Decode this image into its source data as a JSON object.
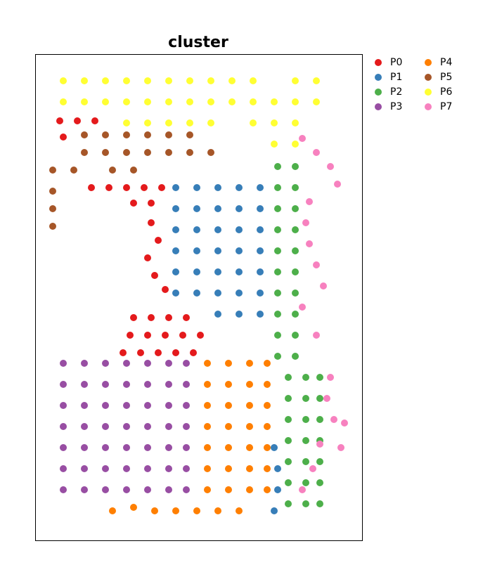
{
  "chart_data": {
    "type": "scatter",
    "title": "cluster",
    "xlim": [
      0,
      465
    ],
    "ylim": [
      693,
      0
    ],
    "legend": "outside-right",
    "series": [
      {
        "name": "P0",
        "color": "#e41a1c",
        "x": [
          35,
          60,
          85,
          40,
          80,
          105,
          130,
          155,
          180,
          140,
          165,
          165,
          175,
          160,
          170,
          185,
          140,
          165,
          190,
          215,
          135,
          160,
          185,
          210,
          235,
          125,
          150,
          175,
          200,
          225
        ],
        "y": [
          95,
          95,
          95,
          118,
          190,
          190,
          190,
          190,
          190,
          212,
          212,
          240,
          265,
          290,
          315,
          335,
          375,
          375,
          375,
          375,
          400,
          400,
          400,
          400,
          400,
          425,
          425,
          425,
          425,
          425
        ]
      },
      {
        "name": "P1",
        "color": "#377eb8",
        "x": [
          200,
          230,
          260,
          290,
          320,
          200,
          230,
          260,
          290,
          320,
          200,
          230,
          260,
          290,
          320,
          200,
          230,
          260,
          290,
          320,
          200,
          230,
          260,
          290,
          320,
          200,
          230,
          260,
          290,
          320,
          260,
          290,
          320,
          340,
          345,
          345,
          340
        ],
        "y": [
          190,
          190,
          190,
          190,
          190,
          220,
          220,
          220,
          220,
          220,
          250,
          250,
          250,
          250,
          250,
          280,
          280,
          280,
          280,
          280,
          310,
          310,
          310,
          310,
          310,
          340,
          340,
          340,
          340,
          340,
          370,
          370,
          370,
          560,
          590,
          620,
          650
        ]
      },
      {
        "name": "P2",
        "color": "#4daf4a",
        "x": [
          345,
          370,
          345,
          370,
          345,
          370,
          345,
          370,
          345,
          370,
          345,
          370,
          345,
          370,
          345,
          370,
          345,
          370,
          345,
          370,
          360,
          385,
          405,
          360,
          385,
          405,
          360,
          385,
          405,
          360,
          385,
          405,
          360,
          385,
          405,
          360,
          385,
          405,
          360,
          385,
          405
        ],
        "y": [
          160,
          160,
          190,
          190,
          220,
          220,
          250,
          250,
          280,
          280,
          310,
          310,
          340,
          340,
          370,
          370,
          400,
          400,
          430,
          430,
          460,
          460,
          460,
          490,
          490,
          490,
          520,
          520,
          520,
          550,
          550,
          550,
          580,
          580,
          580,
          610,
          610,
          610,
          640,
          640,
          640
        ]
      },
      {
        "name": "P3",
        "color": "#984ea3",
        "x": [
          40,
          70,
          100,
          130,
          160,
          190,
          215,
          40,
          70,
          100,
          130,
          160,
          190,
          215,
          40,
          70,
          100,
          130,
          160,
          190,
          215,
          40,
          70,
          100,
          130,
          160,
          190,
          215,
          40,
          70,
          100,
          130,
          160,
          190,
          215,
          40,
          70,
          100,
          130,
          160,
          190,
          215,
          40,
          70,
          100,
          130,
          160,
          190,
          215
        ],
        "y": [
          440,
          440,
          440,
          440,
          440,
          440,
          440,
          470,
          470,
          470,
          470,
          470,
          470,
          470,
          500,
          500,
          500,
          500,
          500,
          500,
          500,
          530,
          530,
          530,
          530,
          530,
          530,
          530,
          560,
          560,
          560,
          560,
          560,
          560,
          560,
          590,
          590,
          590,
          590,
          590,
          590,
          590,
          620,
          620,
          620,
          620,
          620,
          620,
          620
        ]
      },
      {
        "name": "P4",
        "color": "#ff7f00",
        "x": [
          245,
          275,
          305,
          330,
          245,
          275,
          305,
          330,
          245,
          275,
          305,
          330,
          245,
          275,
          305,
          330,
          245,
          275,
          305,
          330,
          245,
          275,
          305,
          330,
          245,
          275,
          305,
          330,
          110,
          140,
          170,
          200,
          230,
          260,
          290
        ],
        "y": [
          440,
          440,
          440,
          440,
          470,
          470,
          470,
          470,
          500,
          500,
          500,
          500,
          530,
          530,
          530,
          530,
          560,
          560,
          560,
          560,
          590,
          590,
          590,
          590,
          620,
          620,
          620,
          620,
          650,
          645,
          650,
          650,
          650,
          650,
          650
        ]
      },
      {
        "name": "P5",
        "color": "#a65628",
        "x": [
          70,
          100,
          130,
          160,
          190,
          220,
          70,
          100,
          130,
          160,
          190,
          220,
          250,
          25,
          55,
          110,
          140,
          25,
          25,
          25
        ],
        "y": [
          115,
          115,
          115,
          115,
          115,
          115,
          140,
          140,
          140,
          140,
          140,
          140,
          140,
          165,
          165,
          165,
          165,
          195,
          220,
          245
        ]
      },
      {
        "name": "P6",
        "color": "#ffff33",
        "x": [
          40,
          70,
          100,
          130,
          160,
          190,
          220,
          250,
          280,
          310,
          370,
          400,
          40,
          70,
          100,
          130,
          160,
          190,
          220,
          250,
          280,
          310,
          340,
          370,
          400,
          130,
          160,
          190,
          220,
          250,
          310,
          340,
          370,
          340,
          370
        ],
        "y": [
          38,
          38,
          38,
          38,
          38,
          38,
          38,
          38,
          38,
          38,
          38,
          38,
          68,
          68,
          68,
          68,
          68,
          68,
          68,
          68,
          68,
          68,
          68,
          68,
          68,
          98,
          98,
          98,
          98,
          98,
          98,
          98,
          98,
          128,
          128
        ]
      },
      {
        "name": "P7",
        "color": "#f781bf",
        "x": [
          380,
          400,
          420,
          430,
          390,
          385,
          390,
          400,
          410,
          380,
          400,
          420,
          415,
          425,
          440,
          405,
          395,
          380,
          435
        ],
        "y": [
          120,
          140,
          160,
          185,
          210,
          240,
          270,
          300,
          330,
          360,
          400,
          460,
          490,
          520,
          525,
          555,
          590,
          620,
          560
        ]
      }
    ]
  }
}
